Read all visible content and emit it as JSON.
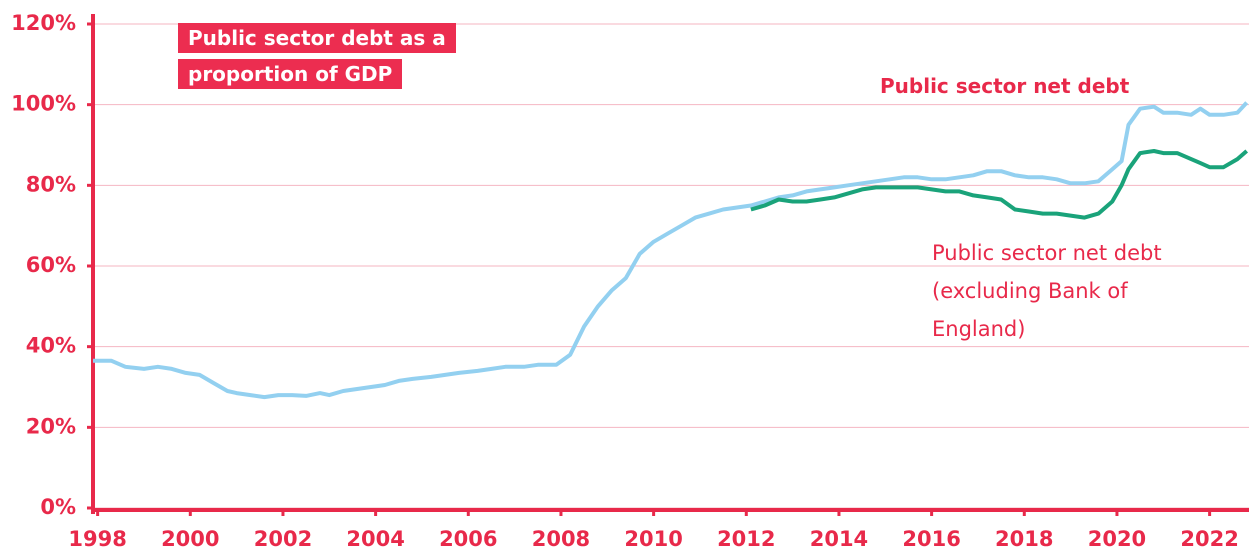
{
  "chart_data": {
    "type": "line",
    "title": "Public sector debt as a proportion of GDP",
    "x": [
      1997.9,
      1998.3,
      1998.6,
      1999,
      1999.3,
      1999.6,
      1999.9,
      2000.2,
      2000.5,
      2000.8,
      2001,
      2001.3,
      2001.6,
      2001.9,
      2002.2,
      2002.5,
      2002.8,
      2003,
      2003.3,
      2003.6,
      2003.9,
      2004.2,
      2004.5,
      2004.8,
      2005.2,
      2005.5,
      2005.8,
      2006.2,
      2006.5,
      2006.8,
      2007.2,
      2007.5,
      2007.9,
      2008.2,
      2008.5,
      2008.8,
      2009.1,
      2009.4,
      2009.7,
      2010,
      2010.3,
      2010.6,
      2010.9,
      2011.2,
      2011.5,
      2011.8,
      2012.1,
      2012.4,
      2012.7,
      2013,
      2013.3,
      2013.6,
      2013.9,
      2014.2,
      2014.5,
      2014.8,
      2015.1,
      2015.4,
      2015.7,
      2016,
      2016.3,
      2016.6,
      2016.9,
      2017.2,
      2017.5,
      2017.8,
      2018.1,
      2018.4,
      2018.7,
      2019,
      2019.3,
      2019.6,
      2019.9,
      2020.1,
      2020.25,
      2020.5,
      2020.8,
      2021,
      2021.3,
      2021.6,
      2021.8,
      2022,
      2022.3,
      2022.6,
      2022.8
    ],
    "series": [
      {
        "name": "Public sector net debt",
        "color": "#93d0f0",
        "values": [
          36.5,
          36.5,
          35,
          34.5,
          35,
          34.5,
          33.5,
          33,
          31,
          29,
          28.5,
          28,
          27.5,
          28,
          28,
          27.8,
          28.5,
          28,
          29,
          29.5,
          30,
          30.5,
          31.5,
          32,
          32.5,
          33,
          33.5,
          34,
          34.5,
          35,
          35,
          35.5,
          35.5,
          38,
          45,
          50,
          54,
          57,
          63,
          66,
          68,
          70,
          72,
          73,
          74,
          74.5,
          75,
          76,
          77,
          77.5,
          78.5,
          79,
          79.5,
          80,
          80.5,
          81,
          81.5,
          82,
          82,
          81.5,
          81.5,
          82,
          82.5,
          83.5,
          83.5,
          82.5,
          82,
          82,
          81.5,
          80.5,
          80.5,
          81,
          84,
          86,
          95,
          99,
          99.5,
          98,
          98,
          97.5,
          99,
          97.5,
          97.5,
          98,
          100.5
        ]
      },
      {
        "name": "Public sector net debt (excluding Bank of England)",
        "color": "#1aa37a",
        "values": [
          null,
          null,
          null,
          null,
          null,
          null,
          null,
          null,
          null,
          null,
          null,
          null,
          null,
          null,
          null,
          null,
          null,
          null,
          null,
          null,
          null,
          null,
          null,
          null,
          null,
          null,
          null,
          null,
          null,
          null,
          null,
          null,
          null,
          null,
          null,
          null,
          null,
          null,
          null,
          null,
          null,
          null,
          null,
          null,
          null,
          null,
          74,
          75,
          76.5,
          76,
          76,
          76.5,
          77,
          78,
          79,
          79.5,
          79.5,
          79.5,
          79.5,
          79,
          78.5,
          78.5,
          77.5,
          77,
          76.5,
          74,
          73.5,
          73,
          73,
          72.5,
          72,
          73,
          76,
          80,
          84,
          88,
          88.5,
          88,
          88,
          86.5,
          85.5,
          84.5,
          84.5,
          86.5,
          88.5
        ]
      }
    ],
    "xlim": [
      1997.9,
      2022.85
    ],
    "xticks": [
      1998,
      2000,
      2002,
      2004,
      2006,
      2008,
      2010,
      2012,
      2014,
      2016,
      2018,
      2020,
      2022
    ],
    "ylim": [
      0,
      120
    ],
    "yticks": [
      {
        "value": 0,
        "label": "0%"
      },
      {
        "value": 20,
        "label": "20%"
      },
      {
        "value": 40,
        "label": "40%"
      },
      {
        "value": 60,
        "label": "60%"
      },
      {
        "value": 80,
        "label": "80%"
      },
      {
        "value": 100,
        "label": "100%"
      },
      {
        "value": 120,
        "label": "120%"
      }
    ],
    "grid": true
  }
}
